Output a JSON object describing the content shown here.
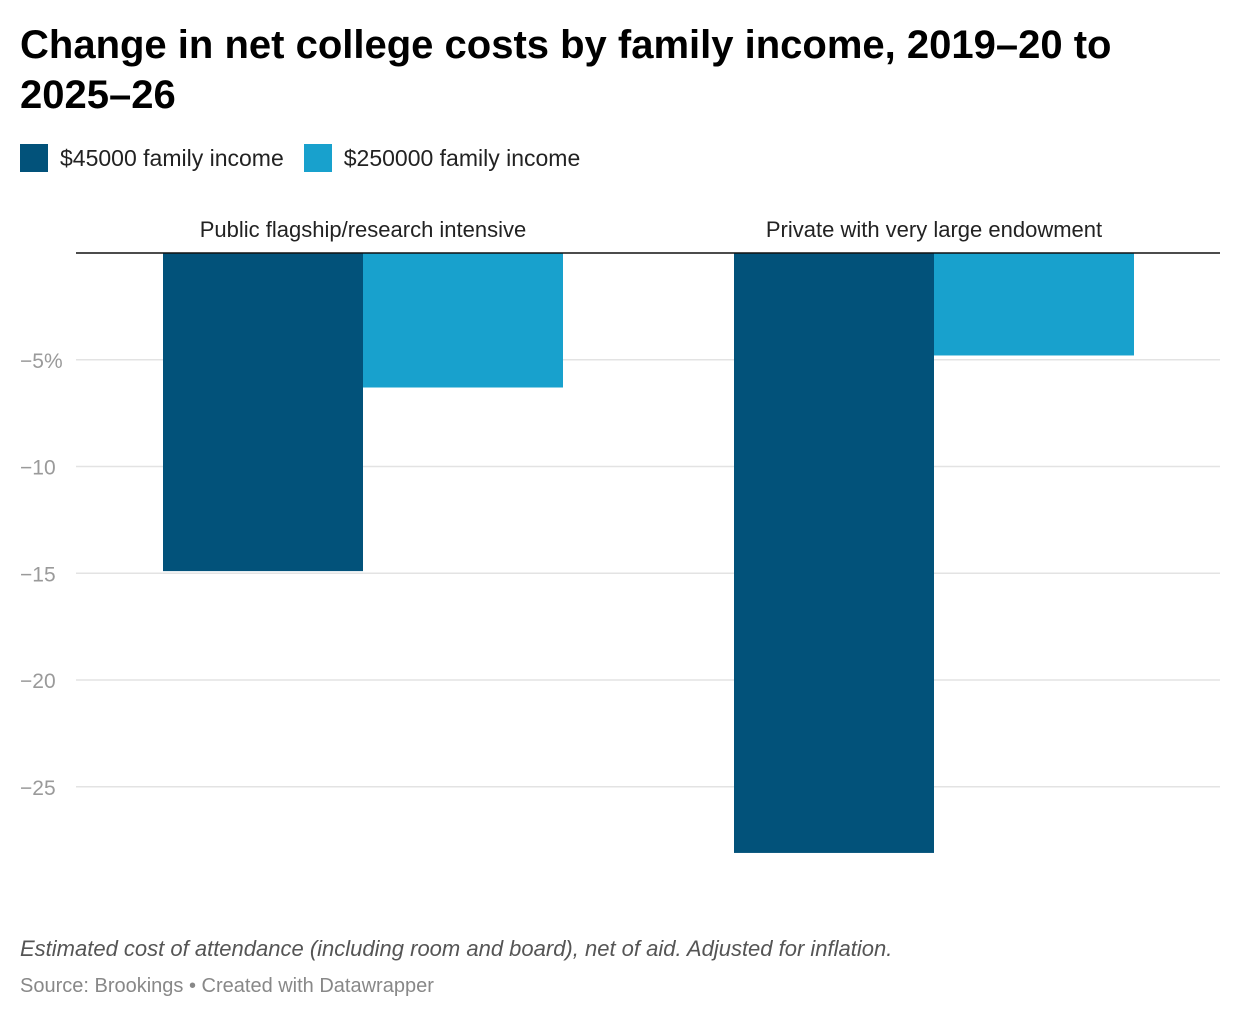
{
  "title": "Change in net college costs by family income, 2019–20 to 2025–26",
  "legend": [
    {
      "label": "$45000 family income",
      "color": "#02527a"
    },
    {
      "label": "$250000 family income",
      "color": "#18a1cd"
    }
  ],
  "notes": "Estimated cost of attendance (including room and board), net of aid. Adjusted for inflation.",
  "source": "Source: Brookings • Created with Datawrapper",
  "chart_data": {
    "type": "bar",
    "categories": [
      "Public flagship/research intensive",
      "Private with very large endowment"
    ],
    "series": [
      {
        "name": "$45000 family income",
        "values": [
          -14.9,
          -28.1
        ],
        "color": "#02527a"
      },
      {
        "name": "$250000 family income",
        "values": [
          -6.3,
          -4.8
        ],
        "color": "#18a1cd"
      }
    ],
    "yticks": [
      -5,
      -10,
      -15,
      -20,
      -25
    ],
    "ytick_labels": [
      "−5%",
      "−10",
      "−15",
      "−20",
      "−25"
    ],
    "ylim": [
      -28.1,
      0
    ],
    "xlabel": "",
    "ylabel": "",
    "grid": true
  }
}
